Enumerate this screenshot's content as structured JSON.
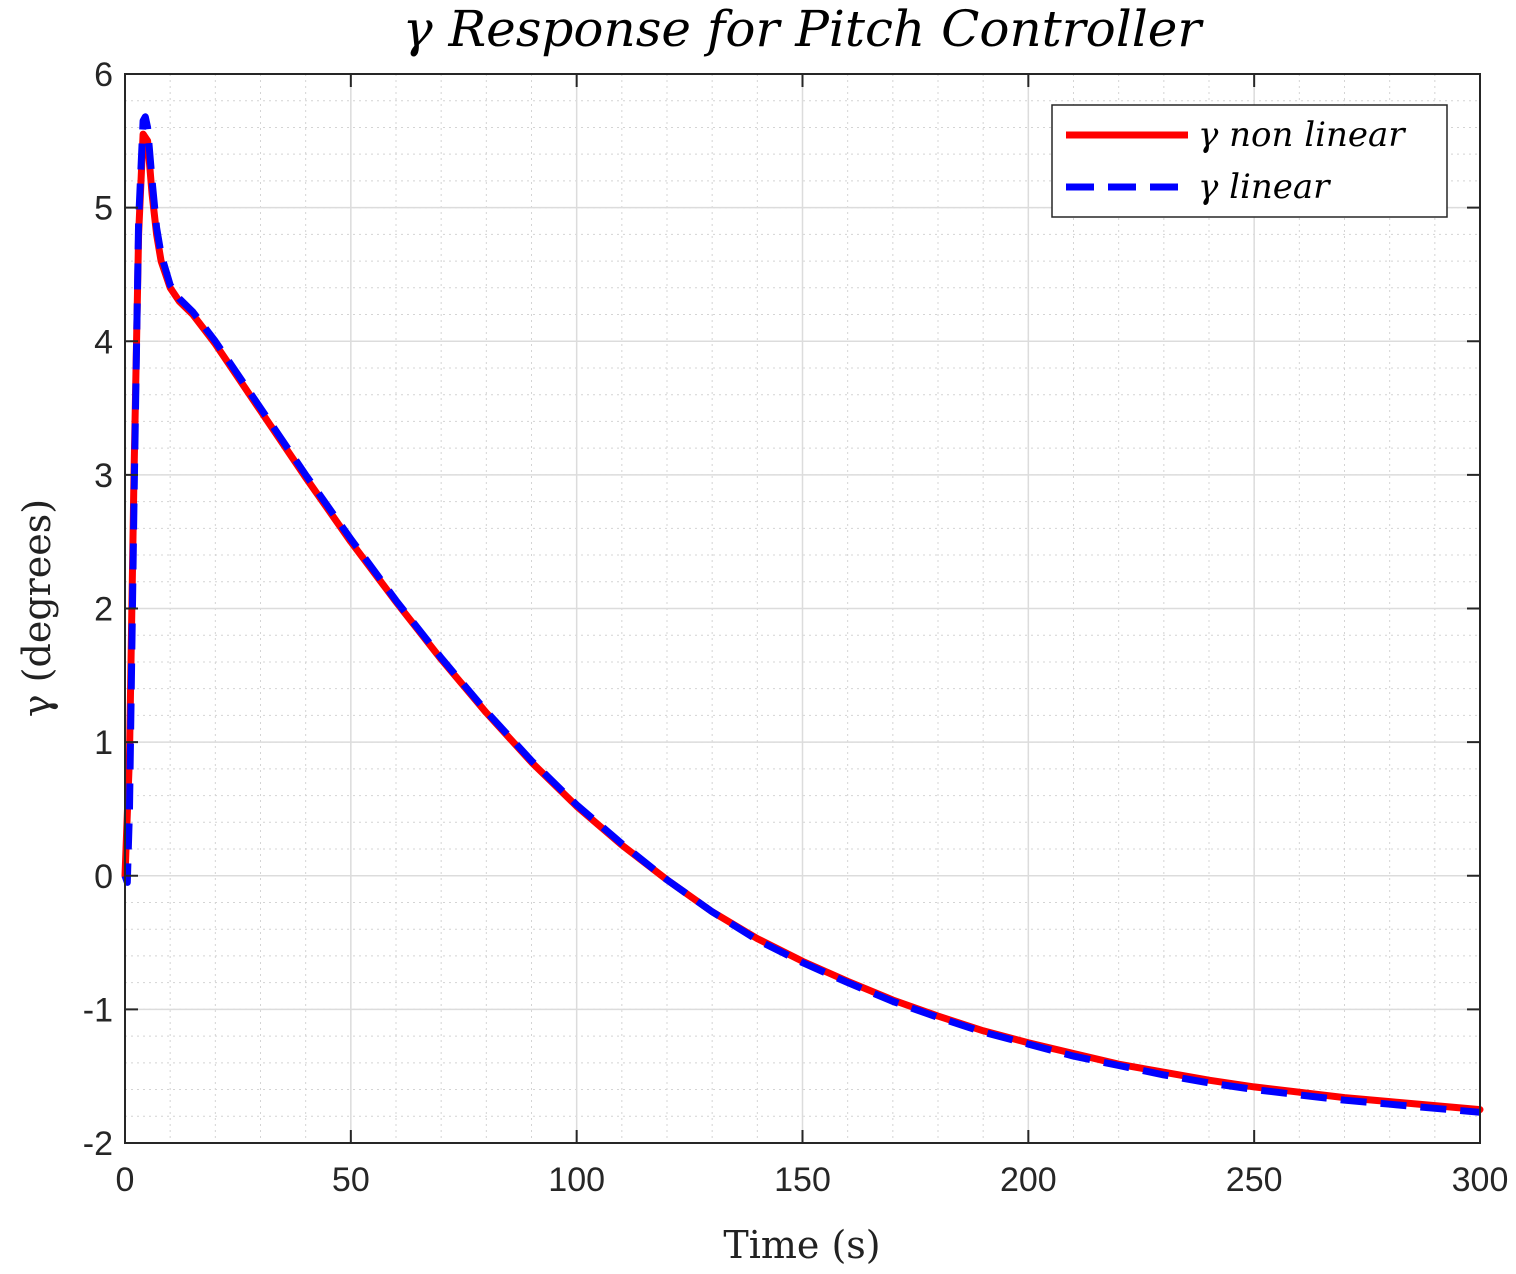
{
  "chart_data": {
    "type": "line",
    "title": "γ Response for Pitch Controller",
    "xlabel": "Time (s)",
    "ylabel": "γ (degrees)",
    "xlim": [
      0,
      300
    ],
    "ylim": [
      -2,
      6
    ],
    "x_ticks": [
      0,
      50,
      100,
      150,
      200,
      250,
      300
    ],
    "y_ticks": [
      -2,
      -1,
      0,
      1,
      2,
      3,
      4,
      5,
      6
    ],
    "x_tick_labels": [
      "0",
      "50",
      "100",
      "150",
      "200",
      "250",
      "300"
    ],
    "y_tick_labels": [
      "-2",
      "-1",
      "0",
      "1",
      "2",
      "3",
      "4",
      "5",
      "6"
    ],
    "grid": true,
    "minor_grid": true,
    "legend_position": "top-right",
    "series": [
      {
        "name": "γ non linear",
        "color": "#ff0000",
        "style": "solid",
        "x": [
          0,
          1,
          2,
          3,
          4,
          5,
          6,
          7,
          8,
          10,
          12,
          15,
          20,
          30,
          40,
          50,
          60,
          70,
          80,
          90,
          100,
          110,
          120,
          130,
          140,
          150,
          160,
          170,
          180,
          190,
          200,
          210,
          220,
          230,
          240,
          250,
          260,
          270,
          280,
          290,
          300
        ],
        "y": [
          0,
          0.9,
          3.0,
          4.8,
          5.55,
          5.5,
          5.1,
          4.8,
          4.6,
          4.4,
          4.3,
          4.2,
          3.98,
          3.48,
          2.98,
          2.5,
          2.05,
          1.62,
          1.22,
          0.85,
          0.52,
          0.23,
          -0.03,
          -0.27,
          -0.47,
          -0.64,
          -0.79,
          -0.93,
          -1.05,
          -1.16,
          -1.25,
          -1.33,
          -1.41,
          -1.47,
          -1.53,
          -1.58,
          -1.62,
          -1.66,
          -1.69,
          -1.72,
          -1.75
        ]
      },
      {
        "name": "γ linear",
        "color": "#0000ff",
        "style": "dashed",
        "x": [
          0,
          0.5,
          1,
          2,
          3,
          4,
          4.5,
          5,
          6,
          7,
          8,
          10,
          12,
          15,
          20,
          30,
          40,
          50,
          60,
          70,
          80,
          90,
          100,
          110,
          120,
          130,
          140,
          150,
          160,
          170,
          180,
          190,
          200,
          210,
          220,
          230,
          240,
          250,
          260,
          270,
          280,
          290,
          300
        ],
        "y": [
          0,
          -0.05,
          0.5,
          2.8,
          4.9,
          5.65,
          5.68,
          5.6,
          5.2,
          4.85,
          4.65,
          4.42,
          4.32,
          4.22,
          4.0,
          3.5,
          3.0,
          2.52,
          2.06,
          1.63,
          1.23,
          0.86,
          0.53,
          0.24,
          -0.03,
          -0.27,
          -0.48,
          -0.65,
          -0.8,
          -0.94,
          -1.06,
          -1.17,
          -1.26,
          -1.35,
          -1.42,
          -1.49,
          -1.55,
          -1.6,
          -1.64,
          -1.68,
          -1.71,
          -1.74,
          -1.77
        ]
      }
    ]
  }
}
